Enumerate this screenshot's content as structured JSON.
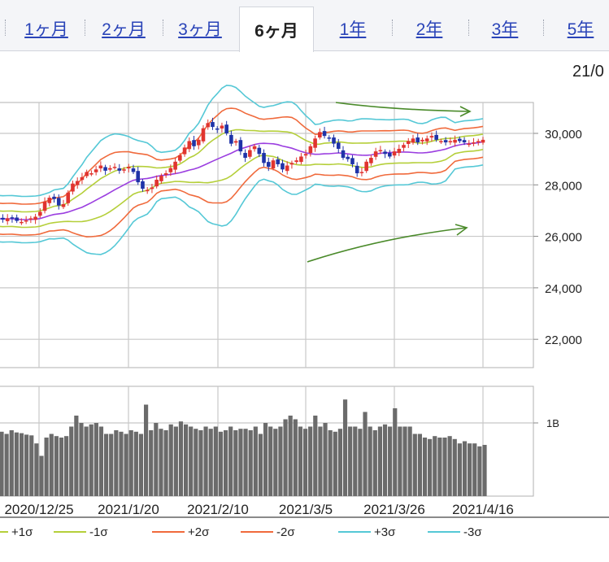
{
  "tabs": [
    {
      "label": "1ヶ月",
      "active": false
    },
    {
      "label": "2ヶ月",
      "active": false
    },
    {
      "label": "3ヶ月",
      "active": false
    },
    {
      "label": "6ヶ月",
      "active": true
    },
    {
      "label": "1年",
      "active": false
    },
    {
      "label": "2年",
      "active": false
    },
    {
      "label": "3年",
      "active": false
    },
    {
      "label": "5年",
      "active": false
    }
  ],
  "date_corner": "21/0",
  "colors": {
    "up_candle": "#e0342f",
    "down_candle": "#1f33a8",
    "moving_average": "#9b3ee0",
    "sigma1": "#b5cf3a",
    "sigma2": "#f06a3c",
    "sigma3": "#55c8d6",
    "volume_bar": "#6b6b6b",
    "annotation_arrow": "#4a8a2a",
    "grid": "#c8c8c8"
  },
  "chart_data": [
    {
      "type": "candlestick",
      "title": "",
      "ylim": [
        20900,
        31200
      ],
      "y_ticks": [
        "30,000",
        "28,000",
        "26,000",
        "24,000",
        "22,000"
      ],
      "y_tick_values": [
        30000,
        28000,
        26000,
        24000,
        22000
      ],
      "x_tick_labels": [
        "2020/12/25",
        "2021/1/20",
        "2021/2/10",
        "2021/3/5",
        "2021/3/26",
        "2021/4/16"
      ],
      "grid": true,
      "close_values": [
        26700,
        26680,
        26650,
        26700,
        26690,
        26600,
        26560,
        26620,
        26700,
        26760,
        26950,
        27350,
        27500,
        27450,
        27200,
        27250,
        27700,
        28050,
        28150,
        28300,
        28500,
        28450,
        28600,
        28750,
        28550,
        28650,
        28700,
        28550,
        28600,
        28700,
        28500,
        28100,
        27850,
        27800,
        27900,
        28200,
        28350,
        28450,
        28650,
        28900,
        29150,
        29450,
        29700,
        29500,
        29750,
        30200,
        30400,
        30250,
        30150,
        30300,
        30000,
        29600,
        29700,
        29300,
        29050,
        29350,
        29500,
        29200,
        28850,
        28700,
        28950,
        28800,
        28600,
        28750,
        28850,
        28950,
        29100,
        29200,
        29500,
        29800,
        30050,
        29900,
        29800,
        29600,
        29400,
        29050,
        29000,
        28800,
        28450,
        28500,
        28900,
        29050,
        29300,
        29350,
        29200,
        29100,
        29300,
        29400,
        29550,
        29700,
        29800,
        29650,
        29750,
        29800,
        29900,
        29750,
        29700,
        29650,
        29700,
        29750,
        29700,
        29650,
        29600,
        29650,
        29700,
        29750
      ],
      "bands": {
        "ma": "center line",
        "sigma_levels": [
          1,
          2,
          3
        ]
      },
      "legend": [
        "+1σ",
        "-1σ",
        "+2σ",
        "-2σ",
        "+3σ",
        "-3σ"
      ],
      "legend_placement": "bottom"
    },
    {
      "type": "bar",
      "title": "",
      "y_tick_label": "1B",
      "ylim": [
        0,
        1.5
      ],
      "values": [
        0.88,
        0.85,
        0.9,
        0.87,
        0.86,
        0.84,
        0.83,
        0.72,
        0.55,
        0.8,
        0.85,
        0.82,
        0.8,
        0.82,
        0.95,
        1.1,
        1.0,
        0.95,
        0.98,
        1.0,
        0.95,
        0.85,
        0.85,
        0.9,
        0.88,
        0.85,
        0.9,
        0.88,
        0.85,
        1.25,
        0.9,
        1.0,
        0.92,
        0.9,
        0.98,
        0.95,
        1.02,
        0.98,
        0.95,
        0.92,
        0.9,
        0.95,
        0.92,
        0.95,
        0.88,
        0.9,
        0.95,
        0.9,
        0.92,
        0.92,
        0.9,
        0.95,
        0.85,
        1.0,
        0.95,
        0.92,
        0.95,
        1.05,
        1.1,
        1.05,
        0.95,
        0.92,
        0.95,
        1.1,
        0.95,
        1.0,
        0.9,
        0.88,
        0.92,
        1.32,
        0.95,
        0.95,
        0.92,
        1.15,
        0.95,
        0.9,
        0.95,
        0.98,
        0.95,
        1.2,
        0.95,
        0.95,
        0.95,
        0.85,
        0.85,
        0.8,
        0.78,
        0.82,
        0.8,
        0.8,
        0.82,
        0.78,
        0.72,
        0.75,
        0.72,
        0.72,
        0.68,
        0.7
      ]
    }
  ]
}
